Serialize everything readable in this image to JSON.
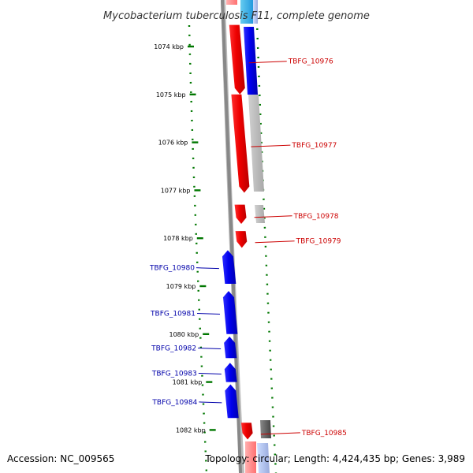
{
  "title": "Mycobacterium tuberculosis F11, complete genome",
  "accession": "Accession: NC_009565",
  "topology": "Topology: circular; Length: 4,424,435 bp; Genes: 3,989",
  "colors": {
    "forward": "#ff0000",
    "reverse": "#0000ff",
    "forward_label": "#cc0000",
    "reverse_label": "#0000aa",
    "scale": "#007700",
    "backbone": "#888888",
    "track_gray": "#bbbbbb",
    "track_dark": "#666666",
    "track_cyan": "#33bbee"
  },
  "ticks": [
    {
      "label": "1074 kbp",
      "kbp": 1074
    },
    {
      "label": "1075 kbp",
      "kbp": 1075
    },
    {
      "label": "1076 kbp",
      "kbp": 1076
    },
    {
      "label": "1077 kbp",
      "kbp": 1077
    },
    {
      "label": "1078 kbp",
      "kbp": 1078
    },
    {
      "label": "1079 kbp",
      "kbp": 1079
    },
    {
      "label": "1080 kbp",
      "kbp": 1080
    },
    {
      "label": "1081 kbp",
      "kbp": 1081
    },
    {
      "label": "1082 kbp",
      "kbp": 1082
    }
  ],
  "genes": [
    {
      "name": "TBFG_10976",
      "strand": "+",
      "start_kbp": 1073.55,
      "end_kbp": 1075.0
    },
    {
      "name": "TBFG_10977",
      "strand": "+",
      "start_kbp": 1075.0,
      "end_kbp": 1077.05
    },
    {
      "name": "TBFG_10978",
      "strand": "+",
      "start_kbp": 1077.3,
      "end_kbp": 1077.7
    },
    {
      "name": "TBFG_10979",
      "strand": "+",
      "start_kbp": 1077.85,
      "end_kbp": 1078.2
    },
    {
      "name": "TBFG_10980",
      "strand": "-",
      "start_kbp": 1078.25,
      "end_kbp": 1078.95
    },
    {
      "name": "TBFG_10981",
      "strand": "-",
      "start_kbp": 1079.1,
      "end_kbp": 1080.0
    },
    {
      "name": "TBFG_10982",
      "strand": "-",
      "start_kbp": 1080.05,
      "end_kbp": 1080.5
    },
    {
      "name": "TBFG_10983",
      "strand": "-",
      "start_kbp": 1080.6,
      "end_kbp": 1081.0
    },
    {
      "name": "TBFG_10984",
      "strand": "-",
      "start_kbp": 1081.05,
      "end_kbp": 1081.75
    },
    {
      "name": "TBFG_10985",
      "strand": "+",
      "start_kbp": 1081.85,
      "end_kbp": 1082.2
    }
  ]
}
